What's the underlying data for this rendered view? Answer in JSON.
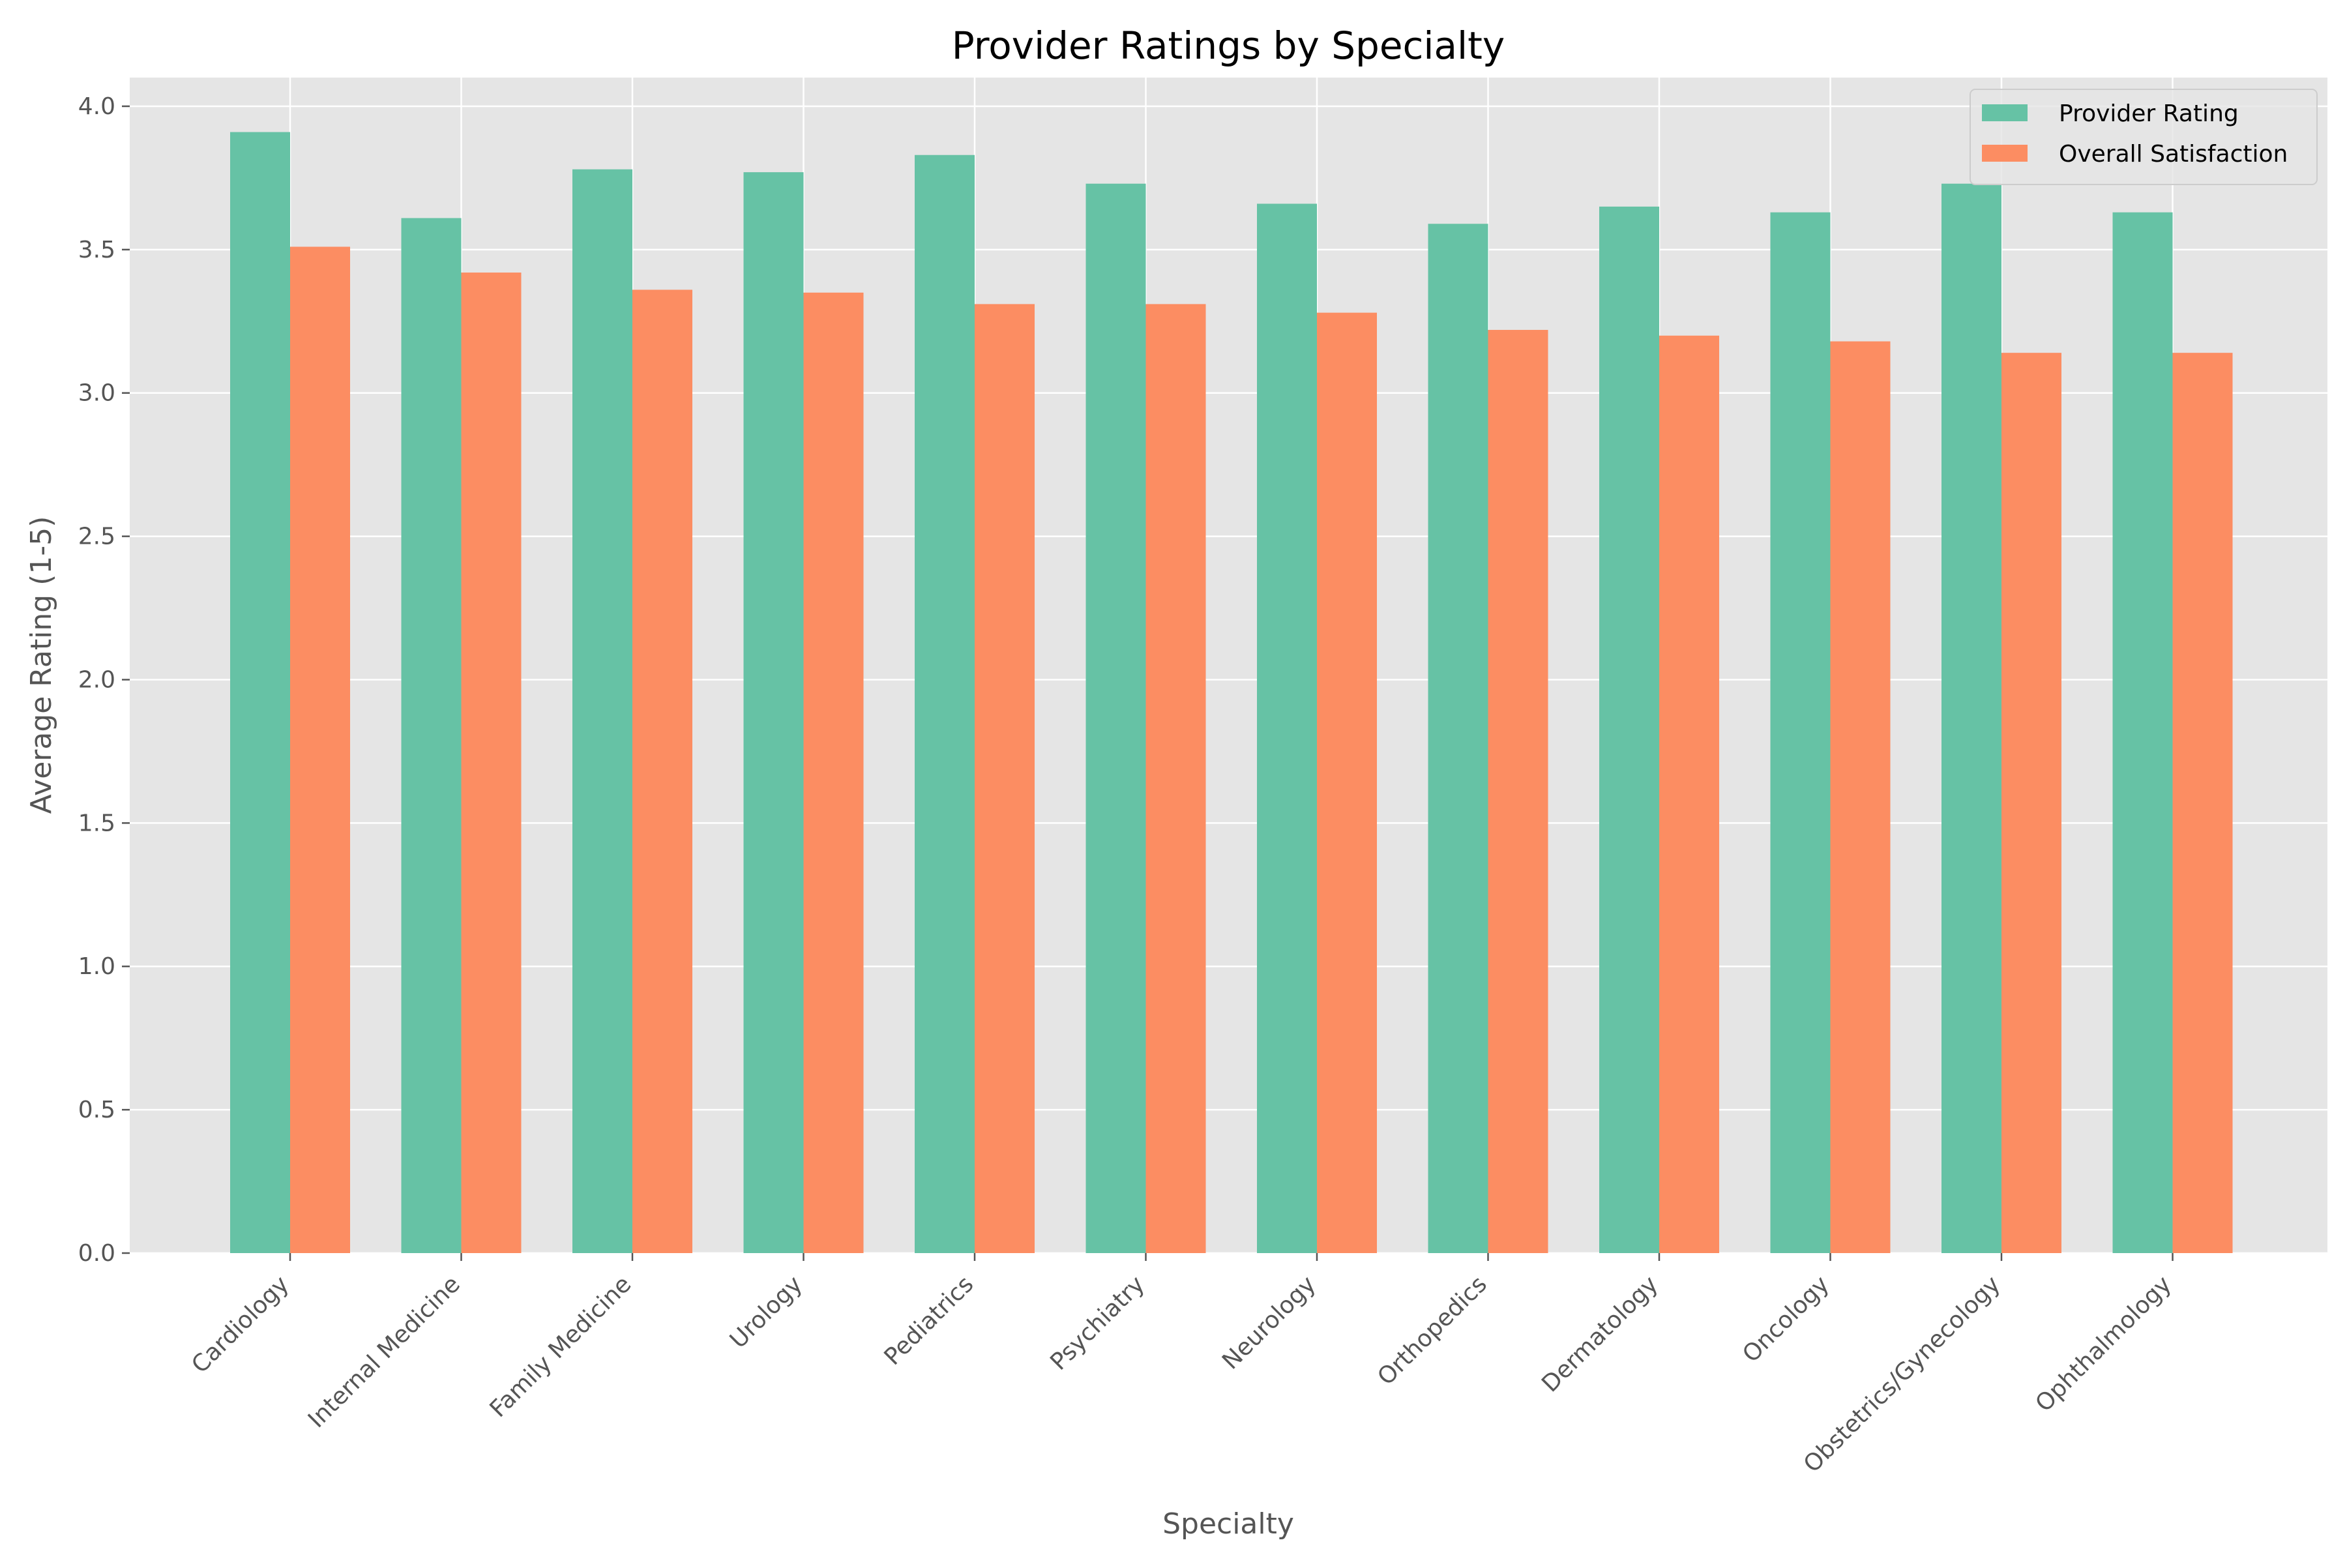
{
  "chart_data": {
    "type": "bar",
    "title": "Provider Ratings by Specialty",
    "xlabel": "Specialty",
    "ylabel": "Average Rating (1-5)",
    "ylim": [
      0,
      4.1
    ],
    "yticks": [
      "0.0",
      "0.5",
      "1.0",
      "1.5",
      "2.0",
      "2.5",
      "3.0",
      "3.5",
      "4.0"
    ],
    "grid": true,
    "legend_position": "top-right",
    "categories": [
      "Cardiology",
      "Internal Medicine",
      "Family Medicine",
      "Urology",
      "Pediatrics",
      "Psychiatry",
      "Neurology",
      "Orthopedics",
      "Dermatology",
      "Oncology",
      "Obstetrics/Gynecology",
      "Ophthalmology"
    ],
    "series": [
      {
        "name": "Provider Rating",
        "color": "#66c2a5",
        "values": [
          3.91,
          3.61,
          3.78,
          3.77,
          3.83,
          3.73,
          3.66,
          3.59,
          3.65,
          3.63,
          3.73,
          3.63
        ]
      },
      {
        "name": "Overall Satisfaction",
        "color": "#fc8d62",
        "values": [
          3.51,
          3.42,
          3.36,
          3.35,
          3.31,
          3.31,
          3.28,
          3.22,
          3.2,
          3.18,
          3.14,
          3.14
        ]
      }
    ]
  }
}
